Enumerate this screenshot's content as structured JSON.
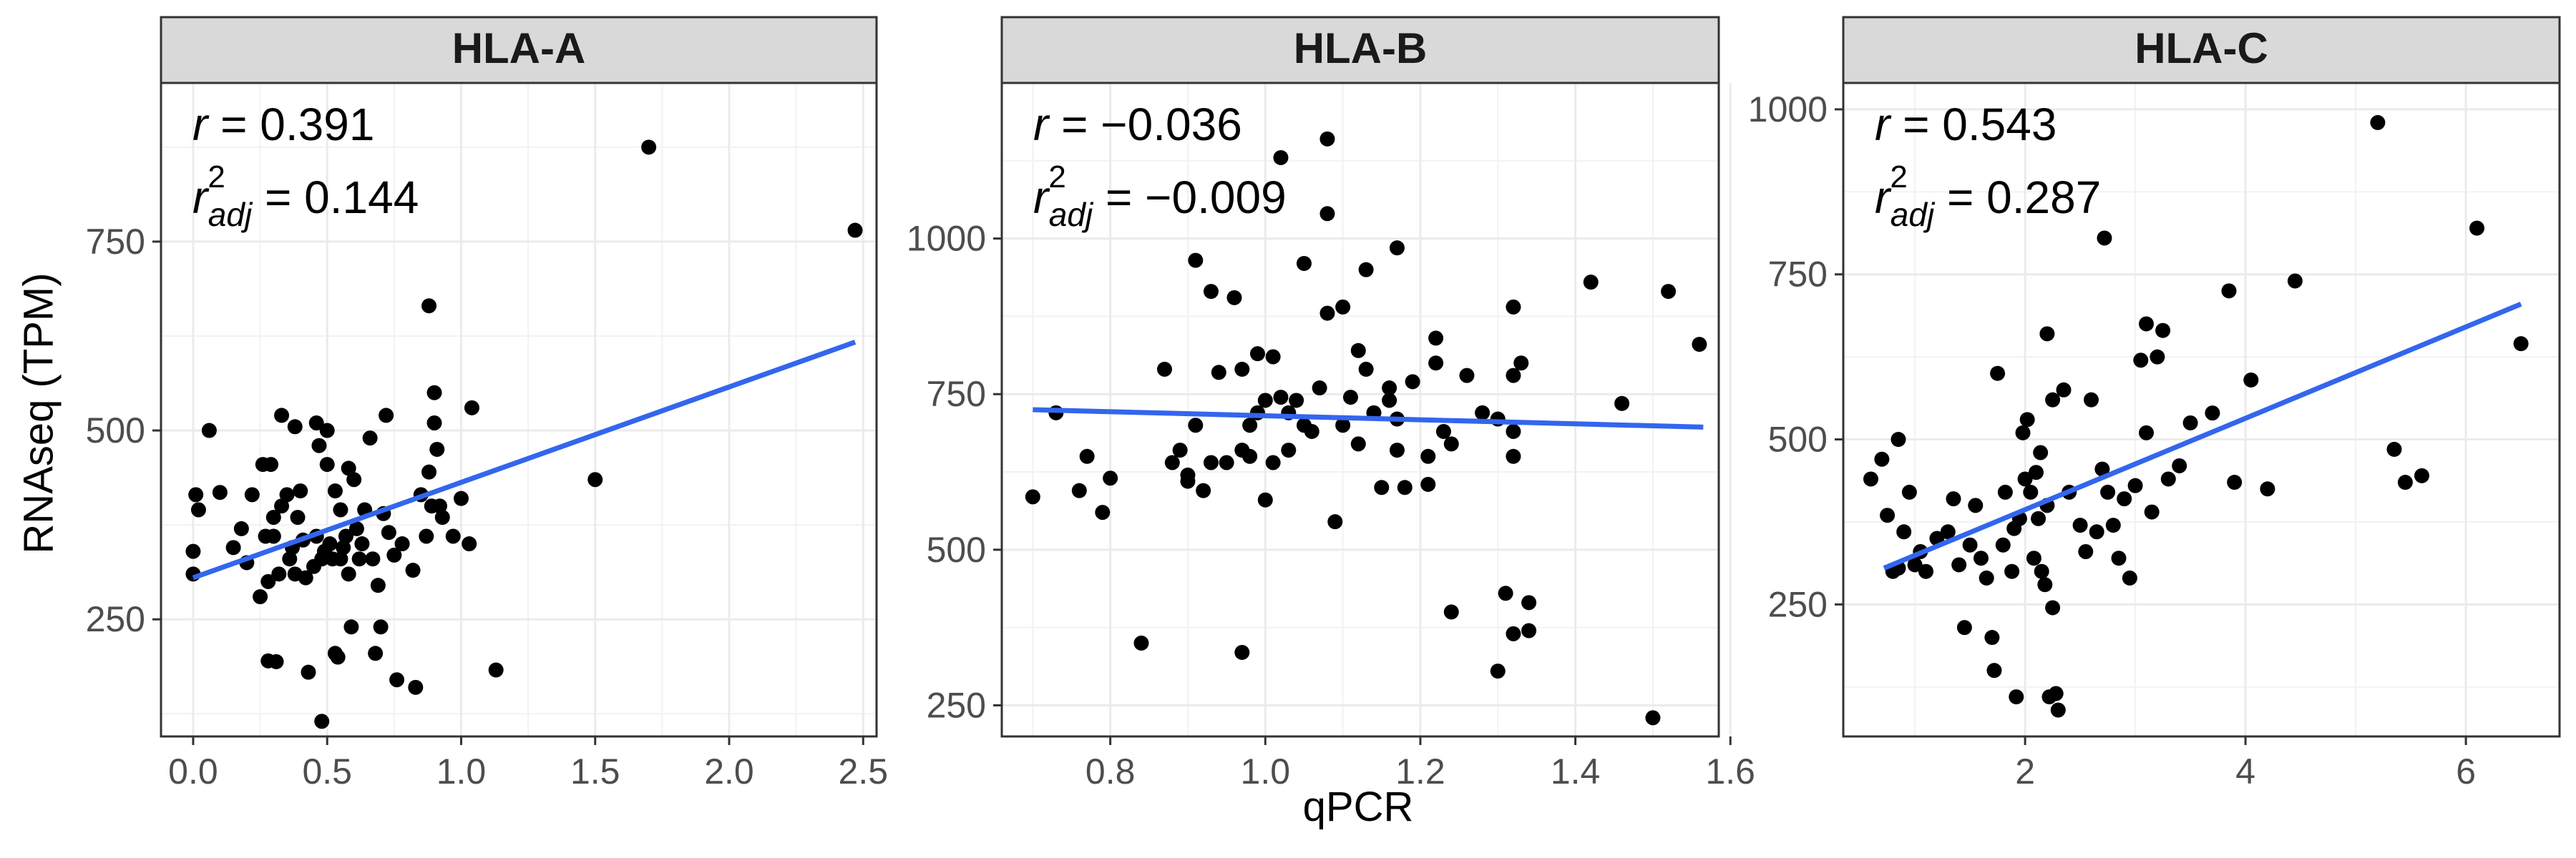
{
  "figure": {
    "ylabel": "RNAseq (TPM)",
    "xlabel": "qPCR",
    "point_color": "#000000",
    "fit_color": "#3366EE",
    "strip_fill": "#D9D9D9",
    "grid_color": "#EBEBEB"
  },
  "chart_data": [
    {
      "type": "scatter",
      "title": "HLA-A",
      "xlim": [
        -0.12,
        2.55
      ],
      "ylim": [
        95,
        960
      ],
      "xticks": [
        0.0,
        0.5,
        1.0,
        1.5,
        2.0,
        2.5
      ],
      "xtick_labels": [
        "0.0",
        "0.5",
        "1.0",
        "1.5",
        "2.0",
        "2.5"
      ],
      "yticks": [
        250,
        500,
        750
      ],
      "ytick_labels": [
        "250",
        "500",
        "750"
      ],
      "stats": {
        "r": "0.391",
        "r2adj": "0.144"
      },
      "fit": {
        "x": [
          0.0,
          2.47
        ],
        "y": [
          305,
          617
        ]
      },
      "points": [
        [
          0.0,
          340
        ],
        [
          0.0,
          310
        ],
        [
          0.01,
          415
        ],
        [
          0.02,
          395
        ],
        [
          0.06,
          500
        ],
        [
          0.1,
          418
        ],
        [
          0.15,
          345
        ],
        [
          0.18,
          370
        ],
        [
          0.2,
          325
        ],
        [
          0.22,
          415
        ],
        [
          0.25,
          280
        ],
        [
          0.26,
          455
        ],
        [
          0.27,
          360
        ],
        [
          0.28,
          300
        ],
        [
          0.28,
          195
        ],
        [
          0.29,
          455
        ],
        [
          0.3,
          385
        ],
        [
          0.3,
          360
        ],
        [
          0.31,
          194
        ],
        [
          0.32,
          310
        ],
        [
          0.33,
          520
        ],
        [
          0.33,
          400
        ],
        [
          0.35,
          415
        ],
        [
          0.36,
          330
        ],
        [
          0.37,
          345
        ],
        [
          0.38,
          505
        ],
        [
          0.38,
          310
        ],
        [
          0.39,
          385
        ],
        [
          0.4,
          420
        ],
        [
          0.41,
          355
        ],
        [
          0.42,
          305
        ],
        [
          0.43,
          180
        ],
        [
          0.45,
          320
        ],
        [
          0.46,
          510
        ],
        [
          0.46,
          360
        ],
        [
          0.47,
          480
        ],
        [
          0.48,
          330
        ],
        [
          0.48,
          115
        ],
        [
          0.49,
          340
        ],
        [
          0.5,
          500
        ],
        [
          0.5,
          455
        ],
        [
          0.51,
          350
        ],
        [
          0.52,
          330
        ],
        [
          0.53,
          420
        ],
        [
          0.53,
          205
        ],
        [
          0.54,
          200
        ],
        [
          0.55,
          395
        ],
        [
          0.55,
          330
        ],
        [
          0.56,
          345
        ],
        [
          0.57,
          360
        ],
        [
          0.58,
          450
        ],
        [
          0.58,
          310
        ],
        [
          0.59,
          240
        ],
        [
          0.6,
          435
        ],
        [
          0.61,
          370
        ],
        [
          0.62,
          330
        ],
        [
          0.63,
          350
        ],
        [
          0.64,
          395
        ],
        [
          0.66,
          490
        ],
        [
          0.67,
          330
        ],
        [
          0.68,
          205
        ],
        [
          0.69,
          295
        ],
        [
          0.7,
          240
        ],
        [
          0.71,
          390
        ],
        [
          0.72,
          520
        ],
        [
          0.73,
          365
        ],
        [
          0.75,
          335
        ],
        [
          0.76,
          170
        ],
        [
          0.78,
          350
        ],
        [
          0.82,
          315
        ],
        [
          0.83,
          160
        ],
        [
          0.85,
          415
        ],
        [
          0.87,
          360
        ],
        [
          0.88,
          665
        ],
        [
          0.88,
          445
        ],
        [
          0.89,
          400
        ],
        [
          0.9,
          550
        ],
        [
          0.9,
          510
        ],
        [
          0.91,
          475
        ],
        [
          0.92,
          400
        ],
        [
          0.93,
          385
        ],
        [
          0.97,
          360
        ],
        [
          1.0,
          410
        ],
        [
          1.03,
          350
        ],
        [
          1.04,
          530
        ],
        [
          1.13,
          183
        ],
        [
          1.5,
          435
        ],
        [
          1.7,
          875
        ],
        [
          2.47,
          765
        ]
      ]
    },
    {
      "type": "scatter",
      "title": "HLA-B",
      "xlim": [
        0.66,
        1.585
      ],
      "ylim": [
        200,
        1250
      ],
      "xticks": [
        0.8,
        1.0,
        1.2,
        1.4,
        1.6
      ],
      "xtick_labels": [
        "0.8",
        "1.0",
        "1.2",
        "1.4",
        "1.6"
      ],
      "yticks": [
        250,
        500,
        750,
        1000
      ],
      "ytick_labels": [
        "250",
        "500",
        "750",
        "1000"
      ],
      "stats": {
        "r": "−0.036",
        "r2adj": "−0.009"
      },
      "fit": {
        "x": [
          0.7,
          1.565
        ],
        "y": [
          725,
          697
        ]
      },
      "points": [
        [
          0.7,
          585
        ],
        [
          0.73,
          720
        ],
        [
          0.76,
          595
        ],
        [
          0.77,
          650
        ],
        [
          0.79,
          560
        ],
        [
          0.8,
          615
        ],
        [
          0.84,
          350
        ],
        [
          0.87,
          790
        ],
        [
          0.88,
          640
        ],
        [
          0.89,
          660
        ],
        [
          0.9,
          610
        ],
        [
          0.9,
          620
        ],
        [
          0.91,
          965
        ],
        [
          0.91,
          700
        ],
        [
          0.92,
          595
        ],
        [
          0.93,
          915
        ],
        [
          0.93,
          640
        ],
        [
          0.94,
          785
        ],
        [
          0.95,
          640
        ],
        [
          0.96,
          905
        ],
        [
          0.97,
          335
        ],
        [
          0.97,
          790
        ],
        [
          0.97,
          660
        ],
        [
          0.98,
          650
        ],
        [
          0.98,
          700
        ],
        [
          0.99,
          815
        ],
        [
          0.99,
          720
        ],
        [
          1.0,
          580
        ],
        [
          1.0,
          740
        ],
        [
          1.01,
          640
        ],
        [
          1.01,
          810
        ],
        [
          1.02,
          745
        ],
        [
          1.02,
          1130
        ],
        [
          1.03,
          660
        ],
        [
          1.03,
          720
        ],
        [
          1.04,
          740
        ],
        [
          1.05,
          960
        ],
        [
          1.05,
          700
        ],
        [
          1.06,
          690
        ],
        [
          1.07,
          760
        ],
        [
          1.08,
          880
        ],
        [
          1.08,
          1040
        ],
        [
          1.08,
          1160
        ],
        [
          1.09,
          545
        ],
        [
          1.1,
          700
        ],
        [
          1.1,
          890
        ],
        [
          1.11,
          745
        ],
        [
          1.12,
          820
        ],
        [
          1.12,
          670
        ],
        [
          1.13,
          950
        ],
        [
          1.13,
          790
        ],
        [
          1.14,
          720
        ],
        [
          1.15,
          600
        ],
        [
          1.16,
          760
        ],
        [
          1.16,
          740
        ],
        [
          1.17,
          985
        ],
        [
          1.17,
          660
        ],
        [
          1.17,
          710
        ],
        [
          1.18,
          600
        ],
        [
          1.19,
          770
        ],
        [
          1.21,
          650
        ],
        [
          1.21,
          605
        ],
        [
          1.22,
          840
        ],
        [
          1.22,
          800
        ],
        [
          1.23,
          690
        ],
        [
          1.24,
          400
        ],
        [
          1.24,
          670
        ],
        [
          1.26,
          780
        ],
        [
          1.28,
          720
        ],
        [
          1.3,
          710
        ],
        [
          1.3,
          305
        ],
        [
          1.31,
          430
        ],
        [
          1.32,
          890
        ],
        [
          1.32,
          780
        ],
        [
          1.32,
          690
        ],
        [
          1.32,
          650
        ],
        [
          1.32,
          365
        ],
        [
          1.33,
          800
        ],
        [
          1.34,
          415
        ],
        [
          1.34,
          370
        ],
        [
          1.42,
          930
        ],
        [
          1.46,
          735
        ],
        [
          1.5,
          230
        ],
        [
          1.52,
          915
        ],
        [
          1.56,
          830
        ]
      ]
    },
    {
      "type": "scatter",
      "title": "HLA-C",
      "xlim": [
        0.35,
        6.85
      ],
      "ylim": [
        50,
        1040
      ],
      "xticks": [
        2,
        4,
        6
      ],
      "xtick_labels": [
        "2",
        "4",
        "6"
      ],
      "yticks": [
        250,
        500,
        750,
        1000
      ],
      "ytick_labels": [
        "250",
        "500",
        "750",
        "1000"
      ],
      "stats": {
        "r": "0.543",
        "r2adj": "0.287"
      },
      "fit": {
        "x": [
          0.72,
          6.5
        ],
        "y": [
          305,
          705
        ]
      },
      "points": [
        [
          0.6,
          440
        ],
        [
          0.7,
          470
        ],
        [
          0.75,
          385
        ],
        [
          0.8,
          300
        ],
        [
          0.85,
          500
        ],
        [
          0.85,
          305
        ],
        [
          0.9,
          360
        ],
        [
          0.95,
          420
        ],
        [
          1.0,
          310
        ],
        [
          1.05,
          330
        ],
        [
          1.1,
          300
        ],
        [
          1.2,
          350
        ],
        [
          1.3,
          360
        ],
        [
          1.35,
          410
        ],
        [
          1.4,
          310
        ],
        [
          1.45,
          215
        ],
        [
          1.5,
          340
        ],
        [
          1.55,
          400
        ],
        [
          1.6,
          320
        ],
        [
          1.65,
          290
        ],
        [
          1.7,
          200
        ],
        [
          1.72,
          150
        ],
        [
          1.75,
          600
        ],
        [
          1.8,
          340
        ],
        [
          1.82,
          420
        ],
        [
          1.88,
          300
        ],
        [
          1.9,
          365
        ],
        [
          1.92,
          110
        ],
        [
          1.95,
          380
        ],
        [
          1.98,
          510
        ],
        [
          2.0,
          440
        ],
        [
          2.02,
          530
        ],
        [
          2.05,
          420
        ],
        [
          2.08,
          320
        ],
        [
          2.1,
          450
        ],
        [
          2.12,
          380
        ],
        [
          2.14,
          480
        ],
        [
          2.15,
          300
        ],
        [
          2.18,
          280
        ],
        [
          2.2,
          660
        ],
        [
          2.2,
          400
        ],
        [
          2.22,
          110
        ],
        [
          2.25,
          560
        ],
        [
          2.25,
          245
        ],
        [
          2.28,
          115
        ],
        [
          2.3,
          90
        ],
        [
          2.35,
          575
        ],
        [
          2.4,
          420
        ],
        [
          2.5,
          370
        ],
        [
          2.55,
          330
        ],
        [
          2.6,
          560
        ],
        [
          2.65,
          360
        ],
        [
          2.7,
          455
        ],
        [
          2.72,
          805
        ],
        [
          2.75,
          420
        ],
        [
          2.8,
          370
        ],
        [
          2.85,
          320
        ],
        [
          2.9,
          410
        ],
        [
          2.95,
          290
        ],
        [
          3.0,
          430
        ],
        [
          3.05,
          620
        ],
        [
          3.1,
          675
        ],
        [
          3.1,
          510
        ],
        [
          3.15,
          390
        ],
        [
          3.2,
          625
        ],
        [
          3.25,
          665
        ],
        [
          3.3,
          440
        ],
        [
          3.4,
          460
        ],
        [
          3.5,
          525
        ],
        [
          3.7,
          540
        ],
        [
          3.85,
          725
        ],
        [
          3.9,
          435
        ],
        [
          4.05,
          590
        ],
        [
          4.2,
          425
        ],
        [
          4.45,
          740
        ],
        [
          5.2,
          980
        ],
        [
          5.35,
          485
        ],
        [
          5.45,
          435
        ],
        [
          5.6,
          445
        ],
        [
          6.1,
          820
        ],
        [
          6.5,
          645
        ]
      ]
    }
  ]
}
